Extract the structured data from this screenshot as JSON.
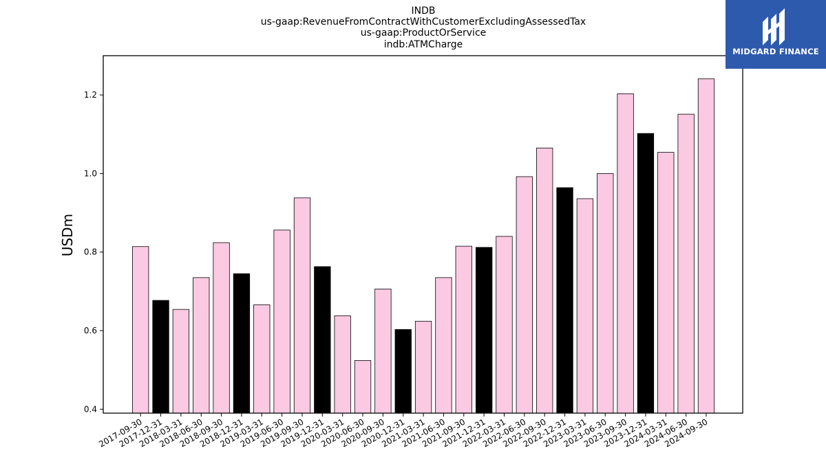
{
  "chart_data": {
    "type": "bar",
    "title_lines": [
      "INDB",
      "us-gaap:RevenueFromContractWithCustomerExcludingAssessedTax",
      "us-gaap:ProductOrService",
      "indb:ATMCharge"
    ],
    "xlabel": "",
    "ylabel": "USDm",
    "ylim": [
      0.39,
      1.3
    ],
    "yticks": [
      0.4,
      0.6,
      0.8,
      1.0,
      1.2
    ],
    "ytick_labels": [
      "0.4",
      "0.6",
      "0.8",
      "1.0",
      "1.2"
    ],
    "categories": [
      "2017-09-30",
      "2017-12-31",
      "2018-03-31",
      "2018-06-30",
      "2018-09-30",
      "2018-12-31",
      "2019-03-31",
      "2019-06-30",
      "2019-09-30",
      "2019-12-31",
      "2020-03-31",
      "2020-06-30",
      "2020-09-30",
      "2020-12-31",
      "2021-03-31",
      "2021-06-30",
      "2021-09-30",
      "2021-12-31",
      "2022-03-31",
      "2022-06-30",
      "2022-09-30",
      "2022-12-31",
      "2023-03-31",
      "2023-06-30",
      "2023-09-30",
      "2023-12-31",
      "2024-03-31",
      "2024-06-30",
      "2024-09-30"
    ],
    "values": [
      0.814,
      0.677,
      0.654,
      0.735,
      0.824,
      0.745,
      0.666,
      0.856,
      0.938,
      0.763,
      0.638,
      0.524,
      0.706,
      0.603,
      0.624,
      0.735,
      0.815,
      0.812,
      0.84,
      0.992,
      1.065,
      0.964,
      0.936,
      1.0,
      1.203,
      1.102,
      1.054,
      1.151,
      1.241
    ],
    "colors": {
      "bar_default": "#fbc9e2",
      "bar_highlight": "#000000",
      "bar_edge": "#000000"
    },
    "highlighted_categories": [
      "2017-12-31",
      "2018-12-31",
      "2019-12-31",
      "2020-12-31",
      "2021-12-31",
      "2022-12-31",
      "2023-12-31"
    ],
    "grid": false,
    "legend": "none"
  },
  "logo": {
    "text": "MIDGARD FINANCE",
    "background": "#2d5aad"
  }
}
